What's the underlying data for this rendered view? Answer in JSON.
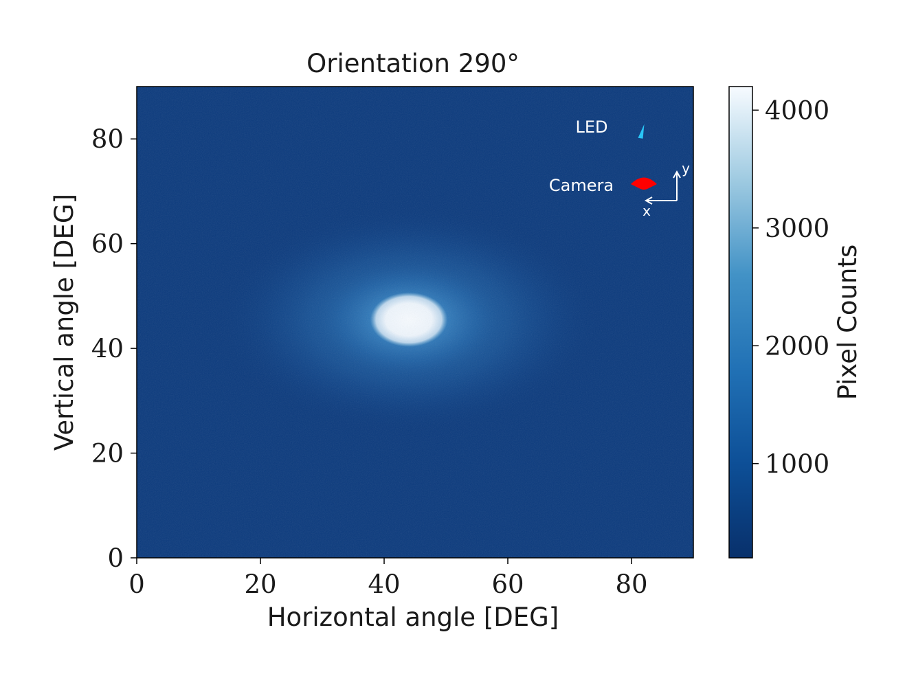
{
  "chart_data": {
    "type": "heatmap",
    "title": "Orientation 290°",
    "xlabel": "Horizontal angle [DEG]",
    "ylabel": "Vertical angle [DEG]",
    "xlim": [
      0,
      90
    ],
    "ylim": [
      0,
      90
    ],
    "xticks": [
      0,
      20,
      40,
      60,
      80
    ],
    "yticks": [
      0,
      20,
      40,
      60,
      80
    ],
    "xtick_labels": [
      "0",
      "20",
      "40",
      "60",
      "80"
    ],
    "ytick_labels": [
      "0",
      "20",
      "40",
      "60",
      "80"
    ],
    "colormap": "Blues",
    "colorbar": {
      "label": "Pixel Counts",
      "range": [
        200,
        4200
      ],
      "ticks": [
        1000,
        2000,
        3000,
        4000
      ],
      "tick_labels": [
        "1000",
        "2000",
        "3000",
        "4000"
      ]
    },
    "peak": {
      "x": 44,
      "y": 45.5,
      "value": 4200,
      "core_width_deg": 10,
      "core_height_deg": 8
    },
    "background_value": 260,
    "annotations": {
      "led_label": "LED",
      "led_position": [
        81.5,
        81.5
      ],
      "led_color": "#29c5f6",
      "camera_label": "Camera",
      "camera_position": [
        82,
        71.5
      ],
      "camera_color": "#ff0000",
      "axis_x_label": "x",
      "axis_y_label": "y"
    }
  }
}
